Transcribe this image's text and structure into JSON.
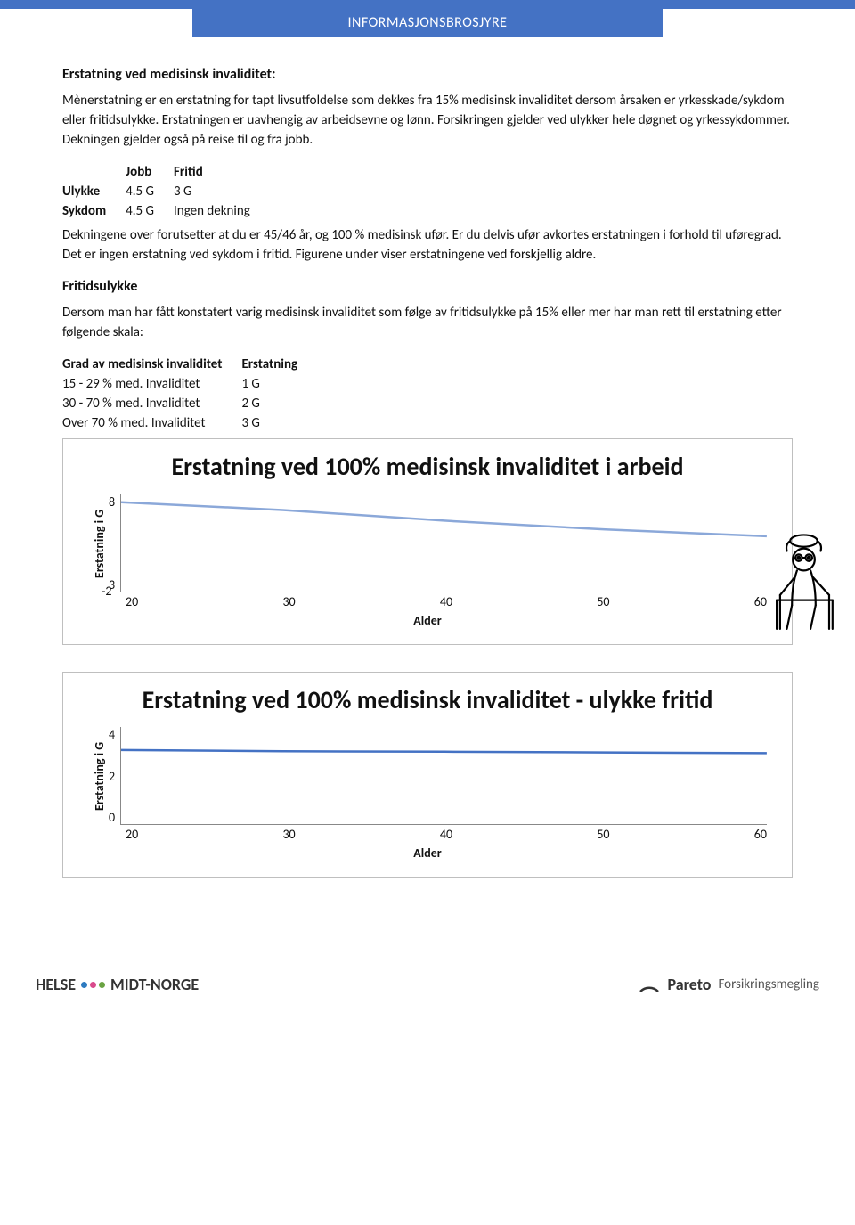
{
  "header": {
    "banner": "INFORMASJONSBROSJYRE"
  },
  "section1": {
    "title": "Erstatning ved medisinsk invaliditet:",
    "body": "Mènerstatning er en erstatning for tapt livsutfoldelse som dekkes fra 15% medisinsk invaliditet dersom årsaken er yrkesskade/sykdom eller fritidsulykke. Erstatningen er uavhengig av arbeidsevne og lønn. Forsikringen gjelder ved ulykker hele døgnet og yrkessykdommer. Dekningen gjelder også på reise til og fra jobb."
  },
  "table1": {
    "headers": [
      "",
      "Jobb",
      "Fritid"
    ],
    "rows": [
      [
        "Ulykke",
        "4.5 G",
        "3 G"
      ],
      [
        "Sykdom",
        "4.5 G",
        "Ingen dekning"
      ]
    ],
    "note": "Dekningene over forutsetter at du er 45/46 år, og 100 % medisinsk ufør. Er du delvis ufør avkortes erstatningen i forhold til uføregrad. Det er ingen erstatning ved sykdom i fritid. Figurene under viser erstatningene ved forskjellig aldre."
  },
  "section2": {
    "title": "Fritidsulykke",
    "body": "Dersom man har fått konstatert varig medisinsk invaliditet som følge av fritidsulykke på 15% eller mer har man rett til erstatning etter følgende skala:"
  },
  "table2": {
    "headers": [
      "Grad av medisinsk invaliditet",
      "Erstatning"
    ],
    "rows": [
      [
        "15 - 29 % med. Invaliditet",
        "1 G"
      ],
      [
        "30 - 70 % med. Invaliditet",
        "2 G"
      ],
      [
        "Over 70 % med. Invaliditet",
        "3 G"
      ]
    ]
  },
  "chart1": {
    "type": "line",
    "title": "Erstatning ved 100% medisinsk invaliditet i arbeid",
    "ylabel": "Erstatning i G",
    "xlabel": "Alder",
    "yticks": [
      "8",
      "3",
      "-2"
    ],
    "xticks": [
      "20",
      "30",
      "40",
      "50",
      "60"
    ],
    "ylim": [
      -2,
      8
    ],
    "xlim": [
      20,
      60
    ],
    "line_color": "#8ba8d9",
    "line_width": 3,
    "points": [
      [
        20,
        7.2
      ],
      [
        30,
        6.4
      ],
      [
        40,
        5.3
      ],
      [
        50,
        4.4
      ],
      [
        60,
        3.7
      ]
    ]
  },
  "chart2": {
    "type": "line",
    "title": "Erstatning ved 100% medisinsk invaliditet - ulykke fritid",
    "ylabel": "Erstatning i G",
    "xlabel": "Alder",
    "yticks": [
      "4",
      "2",
      "0"
    ],
    "xticks": [
      "20",
      "30",
      "40",
      "50",
      "60"
    ],
    "ylim": [
      0,
      4
    ],
    "xlim": [
      20,
      60
    ],
    "line_color": "#4472c4",
    "line_width": 3,
    "points": [
      [
        20,
        3.05
      ],
      [
        30,
        3.0
      ],
      [
        40,
        2.98
      ],
      [
        50,
        2.95
      ],
      [
        60,
        2.92
      ]
    ]
  },
  "footer": {
    "left1": "HELSE",
    "left2": "MIDT-NORGE",
    "dot_colors": [
      "#2e7bc0",
      "#d94a8c",
      "#6aa342"
    ],
    "right1": "Pareto",
    "right2": "Forsikringsmegling"
  }
}
